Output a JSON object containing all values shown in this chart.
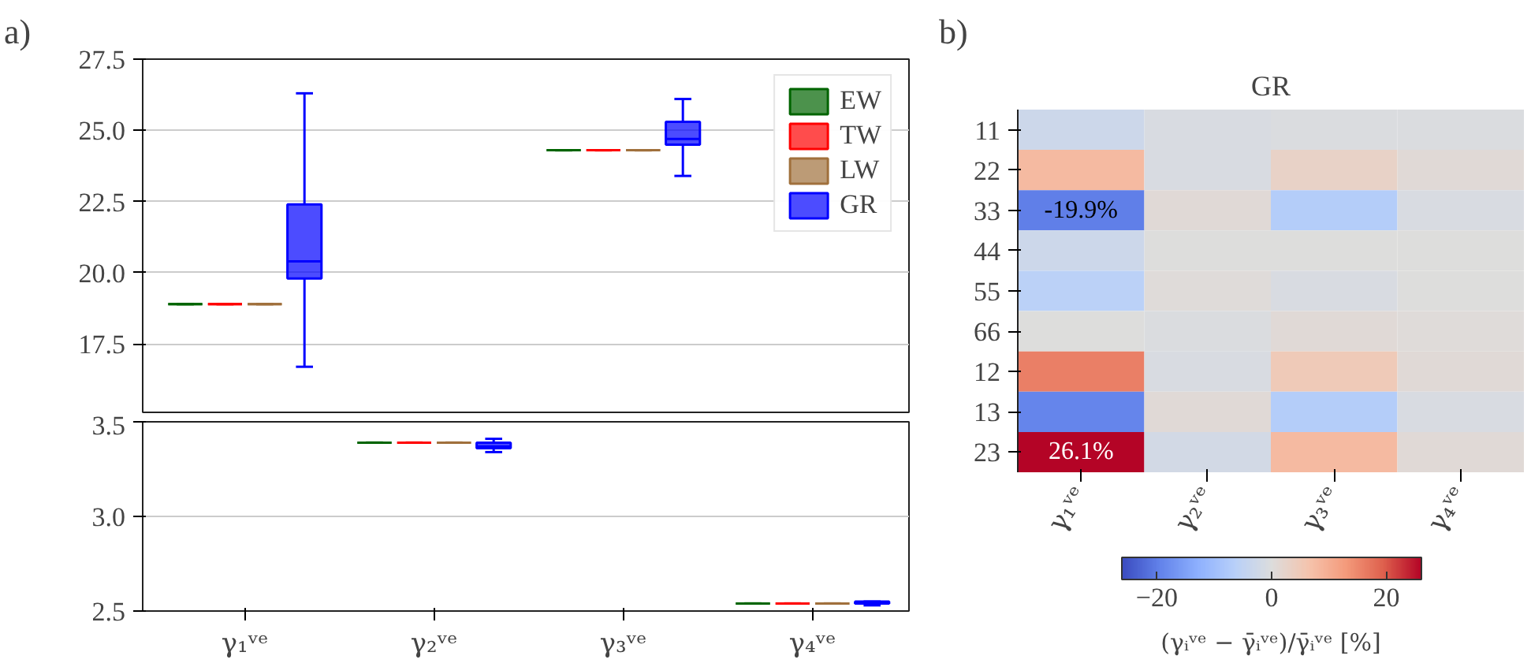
{
  "chart_data": [
    {
      "type": "box",
      "ylim": [
        15.1,
        27.5
      ],
      "yticks": [
        17.5,
        {
          "value": 20,
          "label": "20.0"
        },
        22.5,
        {
          "value": 25,
          "label": "25.0"
        },
        27.5
      ],
      "grid": "y",
      "legend": "top right",
      "tick_labels": "y",
      "annotations": [
        "a)"
      ],
      "series": [
        {
          "name": "EW",
          "color": "#006400",
          "boxes": [
            {
              "low": 18.9,
              "q1": 18.9,
              "median": 18.9,
              "q3": 18.9,
              "high": 18.9
            },
            null,
            {
              "low": 24.3,
              "q1": 24.3,
              "median": 24.3,
              "q3": 24.3,
              "high": 24.3
            },
            null
          ]
        },
        {
          "name": "TW",
          "color": "#ff0000",
          "boxes": [
            {
              "low": 18.9,
              "q1": 18.9,
              "median": 18.9,
              "q3": 18.9,
              "high": 18.9
            },
            null,
            {
              "low": 24.3,
              "q1": 24.3,
              "median": 24.3,
              "q3": 24.3,
              "high": 24.3
            },
            null
          ]
        },
        {
          "name": "LW",
          "color": "#a0703c",
          "boxes": [
            {
              "low": 18.9,
              "q1": 18.9,
              "median": 18.9,
              "q3": 18.9,
              "high": 18.9
            },
            null,
            {
              "low": 24.3,
              "q1": 24.3,
              "median": 24.3,
              "q3": 24.3,
              "high": 24.3
            },
            null
          ]
        },
        {
          "name": "GR",
          "color": "#0000ff",
          "boxes": [
            {
              "low": 16.7,
              "q1": 19.8,
              "median": 20.4,
              "q3": 22.4,
              "high": 26.3
            },
            null,
            {
              "low": 23.4,
              "q1": 24.5,
              "median": 24.7,
              "q3": 25.3,
              "high": 26.1
            },
            null
          ]
        }
      ]
    },
    {
      "type": "box",
      "categories": [
        "γ₁ᵛᵉ",
        "γ₂ᵛᵉ",
        "γ₃ᵛᵉ",
        "γ₄ᵛᵉ"
      ],
      "ylim": [
        2.5,
        3.5
      ],
      "yticks": [
        2.5,
        {
          "value": 3,
          "label": "3.0"
        },
        3.5
      ],
      "grid": "y",
      "series": [
        {
          "color": "#006400",
          "boxes": [
            null,
            {
              "low": 3.39,
              "q1": 3.39,
              "median": 3.39,
              "q3": 3.39,
              "high": 3.39
            },
            null,
            {
              "low": 2.54,
              "q1": 2.54,
              "median": 2.54,
              "q3": 2.54,
              "high": 2.54
            }
          ]
        },
        {
          "color": "#ff0000",
          "boxes": [
            null,
            {
              "low": 3.39,
              "q1": 3.39,
              "median": 3.39,
              "q3": 3.39,
              "high": 3.39
            },
            null,
            {
              "low": 2.54,
              "q1": 2.54,
              "median": 2.54,
              "q3": 2.54,
              "high": 2.54
            }
          ]
        },
        {
          "color": "#a0703c",
          "boxes": [
            null,
            {
              "low": 3.39,
              "q1": 3.39,
              "median": 3.39,
              "q3": 3.39,
              "high": 3.39
            },
            null,
            {
              "low": 2.54,
              "q1": 2.54,
              "median": 2.54,
              "q3": 2.54,
              "high": 2.54
            }
          ]
        },
        {
          "color": "#0000ff",
          "boxes": [
            null,
            {
              "low": 3.34,
              "q1": 3.36,
              "median": 3.37,
              "q3": 3.39,
              "high": 3.41
            },
            null,
            {
              "low": 2.53,
              "q1": 2.54,
              "median": 2.54,
              "q3": 2.55,
              "high": 2.55
            }
          ]
        }
      ]
    },
    {
      "type": "heatmap",
      "title": "GR",
      "annotations": [
        "b)"
      ],
      "clabel": "(γᵢᵛᵉ − γ̄ᵢᵛᵉ)/γ̄ᵢᵛᵉ [%]",
      "clim": [
        -26.1,
        26.1
      ],
      "cticks": [
        {
          "value": -20,
          "label": "−20"
        },
        0,
        20
      ],
      "categories": [
        "γ₁ᵛᵉ",
        "γ₂ᵛᵉ",
        "γ₃ᵛᵉ",
        "γ₄ᵛᵉ"
      ],
      "y_categories": [
        "11",
        "22",
        "33",
        "44",
        "55",
        "66",
        "12",
        "13",
        "23"
      ],
      "cells": [
        [
          -3,
          -1,
          -0.5,
          -0.5
        ],
        [
          8,
          -1,
          3,
          1
        ],
        [
          -19.9,
          1,
          -7,
          -1
        ],
        [
          -3,
          0,
          0,
          0
        ],
        [
          -6,
          0.5,
          -1,
          0
        ],
        [
          0,
          -0.5,
          1,
          0.5
        ],
        [
          16,
          -1,
          5,
          1
        ],
        [
          -19,
          1,
          -7,
          -1
        ],
        [
          26.1,
          -2,
          8,
          1
        ]
      ],
      "cell_labels": [
        [
          null,
          null,
          null,
          null
        ],
        [
          null,
          null,
          null,
          null
        ],
        [
          "-19.9%",
          null,
          null,
          null
        ],
        [
          null,
          null,
          null,
          null
        ],
        [
          null,
          null,
          null,
          null
        ],
        [
          null,
          null,
          null,
          null
        ],
        [
          null,
          null,
          null,
          null
        ],
        [
          null,
          null,
          null,
          null
        ],
        [
          "26.1%",
          null,
          null,
          null
        ]
      ]
    }
  ]
}
